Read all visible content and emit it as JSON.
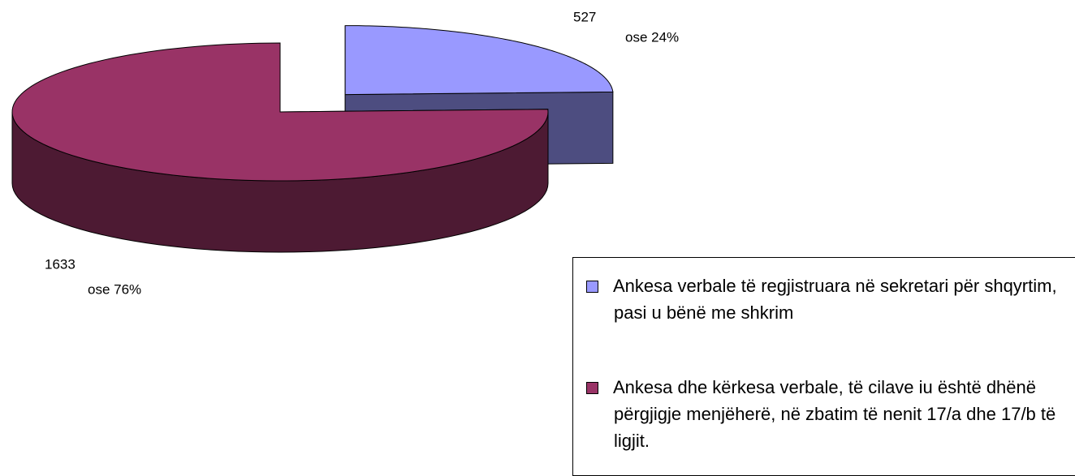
{
  "chart_data": {
    "type": "pie3d",
    "categories": [
      "Ankesa verbale të regjistruara në sekretari për shqyrtim, pasi u bënë me shkrim",
      "Ankesa dhe kërkesa verbale, të cilave iu është dhënë përgjigje menjëherë, në zbatim të nenit 17/a dhe 17/b të ligjit."
    ],
    "values": [
      527,
      1633
    ],
    "percent_labels": [
      "ose 24%",
      "ose 76%"
    ],
    "colors": [
      "#9999ff",
      "#993366"
    ],
    "legend": "bottom-right"
  }
}
